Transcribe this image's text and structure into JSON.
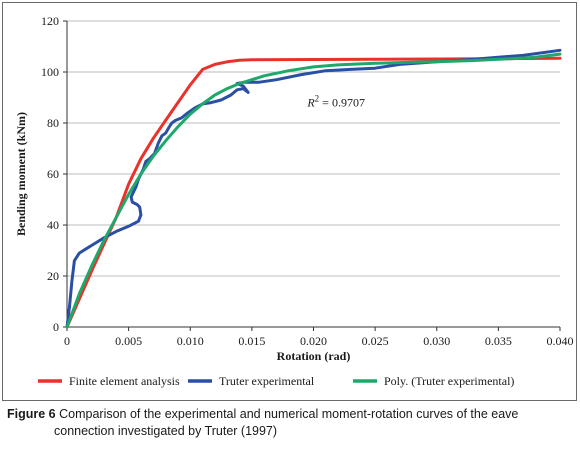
{
  "chart_data": {
    "type": "line",
    "title": "",
    "xlabel": "Rotation (rad)",
    "ylabel": "Bending moment (kNm)",
    "xlim": [
      0,
      0.04
    ],
    "ylim": [
      0,
      120
    ],
    "x_ticks": [
      0,
      0.005,
      0.01,
      0.015,
      0.02,
      0.025,
      0.03,
      0.035,
      0.04
    ],
    "x_tick_labels": [
      "0",
      "0.005",
      "0.010",
      "0.015",
      "0.020",
      "0.025",
      "0.030",
      "0.035",
      "0.040"
    ],
    "y_ticks": [
      0,
      20,
      40,
      60,
      80,
      100,
      120
    ],
    "y_tick_labels": [
      "0",
      "20",
      "40",
      "60",
      "80",
      "100",
      "120"
    ],
    "grid": "horizontal",
    "legend_position": "bottom",
    "annotation": {
      "text": "R² = 0.9707",
      "x": 0.0195,
      "y": 88
    },
    "series": [
      {
        "name": "Finite element analysis",
        "color": "#e8322b",
        "points": [
          [
            0,
            0
          ],
          [
            0.002,
            22
          ],
          [
            0.004,
            43
          ],
          [
            0.005,
            56
          ],
          [
            0.006,
            66
          ],
          [
            0.007,
            74
          ],
          [
            0.008,
            81
          ],
          [
            0.009,
            88
          ],
          [
            0.01,
            95
          ],
          [
            0.011,
            101
          ],
          [
            0.012,
            103
          ],
          [
            0.013,
            104
          ],
          [
            0.014,
            104.6
          ],
          [
            0.015,
            104.8
          ],
          [
            0.02,
            104.9
          ],
          [
            0.025,
            105
          ],
          [
            0.03,
            105.1
          ],
          [
            0.035,
            105.2
          ],
          [
            0.04,
            105.4
          ]
        ]
      },
      {
        "name": "Truter experimental",
        "color": "#2a4fa3",
        "points": [
          [
            0,
            0
          ],
          [
            0.0002,
            8
          ],
          [
            0.0004,
            18
          ],
          [
            0.0006,
            26
          ],
          [
            0.001,
            29
          ],
          [
            0.0015,
            30.5
          ],
          [
            0.002,
            32
          ],
          [
            0.0025,
            33.5
          ],
          [
            0.003,
            35
          ],
          [
            0.004,
            37.5
          ],
          [
            0.005,
            39.5
          ],
          [
            0.0058,
            41.5
          ],
          [
            0.006,
            44
          ],
          [
            0.0059,
            47
          ],
          [
            0.0057,
            48
          ],
          [
            0.0053,
            49
          ],
          [
            0.0052,
            51
          ],
          [
            0.0056,
            55
          ],
          [
            0.0058,
            58
          ],
          [
            0.0062,
            62
          ],
          [
            0.0064,
            65
          ],
          [
            0.0067,
            66
          ],
          [
            0.0071,
            68
          ],
          [
            0.0074,
            72
          ],
          [
            0.0077,
            75
          ],
          [
            0.008,
            76
          ],
          [
            0.0083,
            78.5
          ],
          [
            0.0085,
            80
          ],
          [
            0.0088,
            81
          ],
          [
            0.0093,
            82
          ],
          [
            0.0098,
            84
          ],
          [
            0.0104,
            86
          ],
          [
            0.011,
            87.5
          ],
          [
            0.0117,
            88
          ],
          [
            0.0125,
            89
          ],
          [
            0.0133,
            91
          ],
          [
            0.0138,
            93
          ],
          [
            0.0143,
            93.5
          ],
          [
            0.0147,
            92
          ],
          [
            0.0143,
            94.5
          ],
          [
            0.0138,
            95.5
          ],
          [
            0.0144,
            96
          ],
          [
            0.0156,
            96
          ],
          [
            0.017,
            97
          ],
          [
            0.019,
            99
          ],
          [
            0.021,
            100.5
          ],
          [
            0.023,
            101
          ],
          [
            0.025,
            101.5
          ],
          [
            0.027,
            103
          ],
          [
            0.03,
            104
          ],
          [
            0.033,
            105
          ],
          [
            0.0355,
            106
          ],
          [
            0.037,
            106.5
          ],
          [
            0.04,
            108.5
          ]
        ]
      },
      {
        "name": "Poly. (Truter experimental)",
        "color": "#1ea86a",
        "points": [
          [
            0,
            0
          ],
          [
            0.001,
            13
          ],
          [
            0.002,
            24
          ],
          [
            0.003,
            34
          ],
          [
            0.004,
            43
          ],
          [
            0.005,
            52
          ],
          [
            0.006,
            60
          ],
          [
            0.007,
            67
          ],
          [
            0.008,
            73
          ],
          [
            0.009,
            78.5
          ],
          [
            0.01,
            83.5
          ],
          [
            0.011,
            87.5
          ],
          [
            0.012,
            91
          ],
          [
            0.013,
            93.5
          ],
          [
            0.014,
            95.5
          ],
          [
            0.015,
            97
          ],
          [
            0.016,
            98.5
          ],
          [
            0.018,
            100.5
          ],
          [
            0.02,
            102
          ],
          [
            0.022,
            102.8
          ],
          [
            0.025,
            103.4
          ],
          [
            0.028,
            103.8
          ],
          [
            0.03,
            104
          ],
          [
            0.033,
            104.5
          ],
          [
            0.036,
            105.2
          ],
          [
            0.038,
            105.8
          ],
          [
            0.04,
            107
          ]
        ]
      }
    ]
  },
  "caption": {
    "lead": "Figure 6",
    "text": "Comparison of the experimental and numerical moment-rotation curves of the eave",
    "line2": "connection investigated by Truter (1997)"
  }
}
